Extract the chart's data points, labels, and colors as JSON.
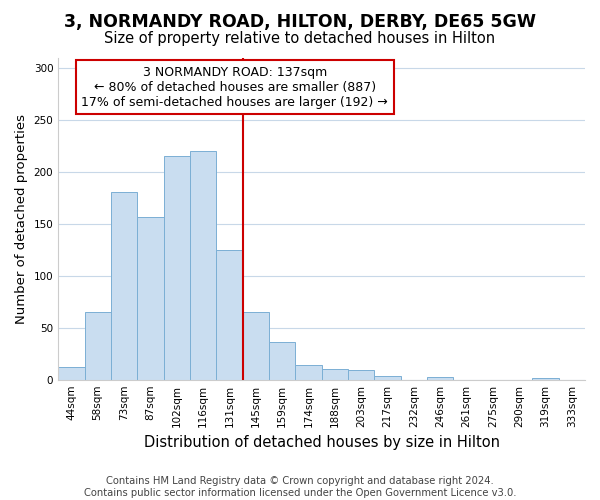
{
  "title": "3, NORMANDY ROAD, HILTON, DERBY, DE65 5GW",
  "subtitle": "Size of property relative to detached houses in Hilton",
  "xlabel": "Distribution of detached houses by size in Hilton",
  "ylabel": "Number of detached properties",
  "bin_labels": [
    "44sqm",
    "58sqm",
    "73sqm",
    "87sqm",
    "102sqm",
    "116sqm",
    "131sqm",
    "145sqm",
    "159sqm",
    "174sqm",
    "188sqm",
    "203sqm",
    "217sqm",
    "232sqm",
    "246sqm",
    "261sqm",
    "275sqm",
    "290sqm",
    "319sqm",
    "333sqm"
  ],
  "bar_heights": [
    12,
    65,
    181,
    157,
    215,
    220,
    125,
    65,
    36,
    14,
    10,
    9,
    4,
    0,
    3,
    0,
    0,
    0,
    2,
    0
  ],
  "bar_color": "#c9ddf0",
  "bar_edge_color": "#7bafd4",
  "vline_x": 6.5,
  "vline_color": "#cc0000",
  "annotation_line1": "3 NORMANDY ROAD: 137sqm",
  "annotation_line2": "← 80% of detached houses are smaller (887)",
  "annotation_line3": "17% of semi-detached houses are larger (192) →",
  "annotation_box_edge_color": "#cc0000",
  "ylim": [
    0,
    310
  ],
  "yticks": [
    0,
    50,
    100,
    150,
    200,
    250,
    300
  ],
  "footer_line1": "Contains HM Land Registry data © Crown copyright and database right 2024.",
  "footer_line2": "Contains public sector information licensed under the Open Government Licence v3.0.",
  "bg_color": "#ffffff",
  "grid_color": "#c8d8e8",
  "title_fontsize": 12.5,
  "subtitle_fontsize": 10.5,
  "xlabel_fontsize": 10.5,
  "ylabel_fontsize": 9.5,
  "tick_fontsize": 7.5,
  "footer_fontsize": 7.2,
  "annotation_fontsize": 9.0
}
